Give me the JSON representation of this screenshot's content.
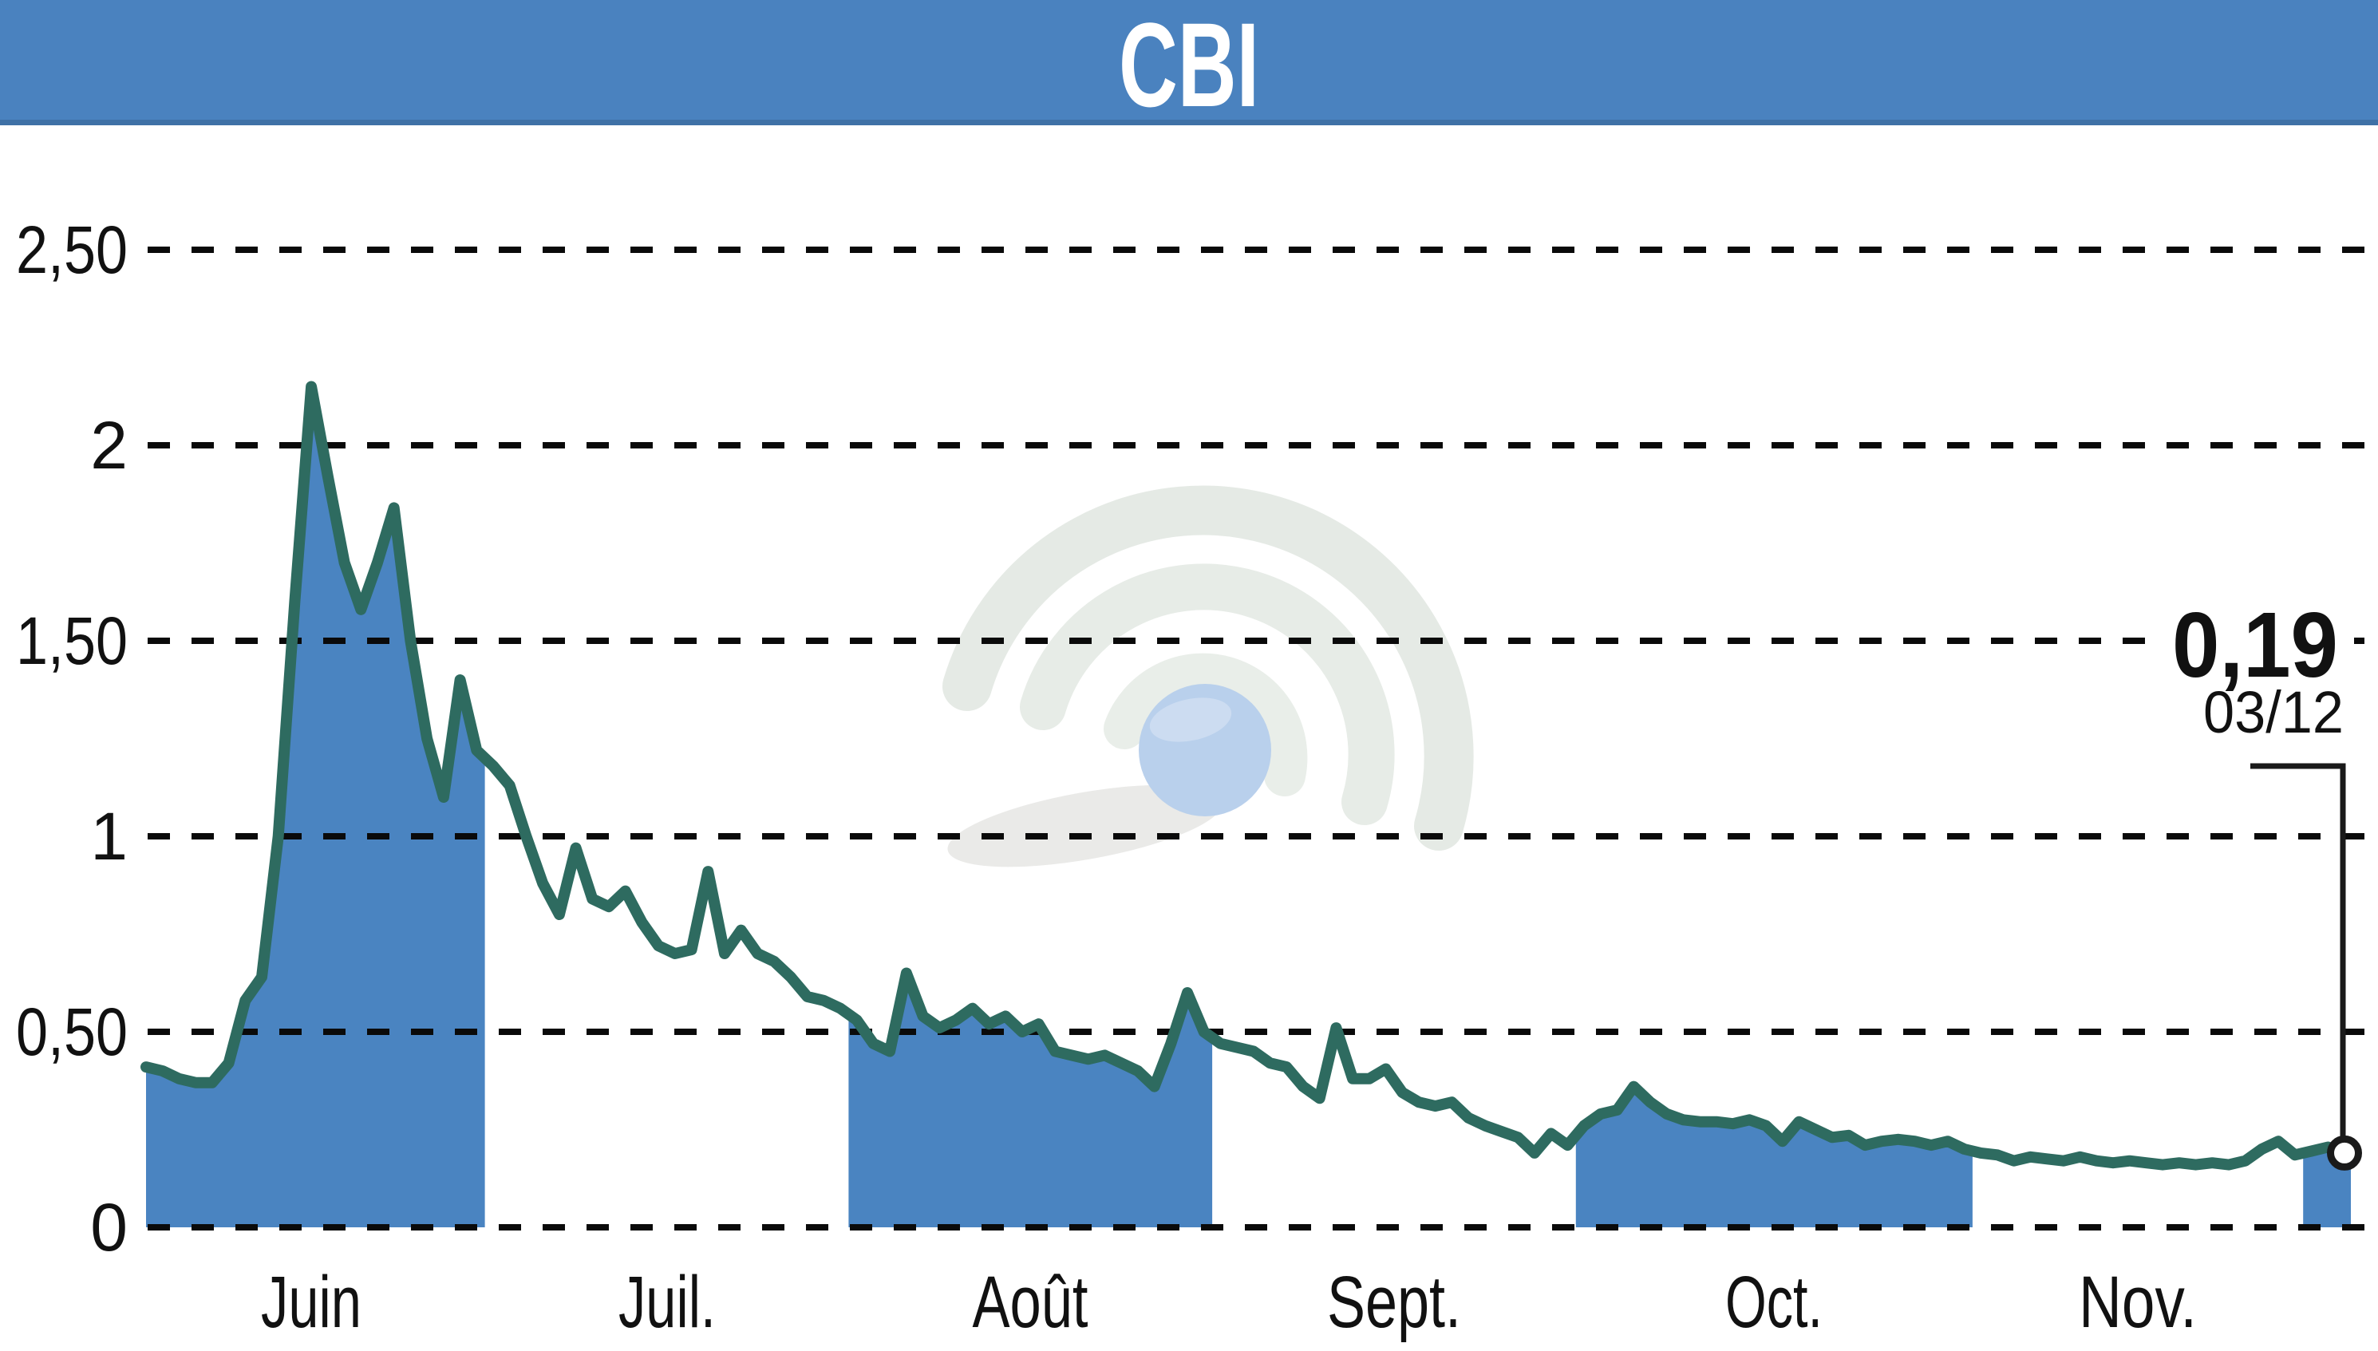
{
  "header": {
    "title": "CBI",
    "bg_color": "#4a82bf",
    "edge_color": "#3f71a6"
  },
  "chart_data": {
    "type": "line",
    "title": "CBI",
    "ylim": [
      0,
      2.72
    ],
    "grid": "dashed-horizontal",
    "y_ticks": [
      {
        "value": 2.5,
        "label": "2,50"
      },
      {
        "value": 2.0,
        "label": "2"
      },
      {
        "value": 1.5,
        "label": "1,50"
      },
      {
        "value": 1.0,
        "label": "1"
      },
      {
        "value": 0.5,
        "label": "0,50"
      },
      {
        "value": 0.0,
        "label": "0"
      }
    ],
    "months": [
      {
        "label": "Juin",
        "days": 21,
        "filled": true
      },
      {
        "label": "Juil.",
        "days": 22,
        "filled": false
      },
      {
        "label": "Août",
        "days": 22,
        "filled": true
      },
      {
        "label": "Sept.",
        "days": 22,
        "filled": false
      },
      {
        "label": "Oct.",
        "days": 24,
        "filled": true
      },
      {
        "label": "Nov.",
        "days": 20,
        "filled": false
      },
      {
        "label": "",
        "days": 3,
        "filled": true
      }
    ],
    "values": [
      0.41,
      0.4,
      0.38,
      0.37,
      0.37,
      0.42,
      0.58,
      0.64,
      1.0,
      1.6,
      2.15,
      1.92,
      1.7,
      1.58,
      1.7,
      1.84,
      1.5,
      1.25,
      1.1,
      1.4,
      1.22,
      1.18,
      1.13,
      1.0,
      0.88,
      0.8,
      0.97,
      0.84,
      0.82,
      0.86,
      0.78,
      0.72,
      0.7,
      0.71,
      0.91,
      0.7,
      0.76,
      0.7,
      0.68,
      0.64,
      0.59,
      0.58,
      0.56,
      0.53,
      0.47,
      0.45,
      0.65,
      0.54,
      0.51,
      0.53,
      0.56,
      0.52,
      0.54,
      0.5,
      0.52,
      0.45,
      0.44,
      0.43,
      0.44,
      0.42,
      0.4,
      0.36,
      0.47,
      0.6,
      0.5,
      0.47,
      0.46,
      0.45,
      0.42,
      0.41,
      0.36,
      0.33,
      0.51,
      0.38,
      0.38,
      0.405,
      0.345,
      0.32,
      0.31,
      0.32,
      0.28,
      0.26,
      0.245,
      0.23,
      0.19,
      0.24,
      0.21,
      0.26,
      0.29,
      0.3,
      0.36,
      0.32,
      0.29,
      0.275,
      0.27,
      0.27,
      0.265,
      0.275,
      0.26,
      0.22,
      0.27,
      0.25,
      0.23,
      0.235,
      0.21,
      0.22,
      0.225,
      0.22,
      0.21,
      0.22,
      0.2,
      0.19,
      0.185,
      0.17,
      0.18,
      0.175,
      0.17,
      0.18,
      0.17,
      0.165,
      0.17,
      0.165,
      0.16,
      0.165,
      0.16,
      0.165,
      0.16,
      0.17,
      0.2,
      0.22,
      0.185,
      0.195,
      0.205,
      0.19
    ],
    "last_point": {
      "value": 0.19,
      "price_label": "0,19",
      "date_label": "03/12"
    },
    "colors": {
      "line": "#2e6b60",
      "area_fill": "#4a84c1",
      "grid": "#0a0a0a",
      "marker_fill": "#ffffff",
      "marker_stroke": "#1a1a1a"
    }
  },
  "watermark": {
    "icon": "signal-arcs-globe",
    "sphere_color": "#b9d0ec",
    "arc_color": "#e7ece7"
  }
}
